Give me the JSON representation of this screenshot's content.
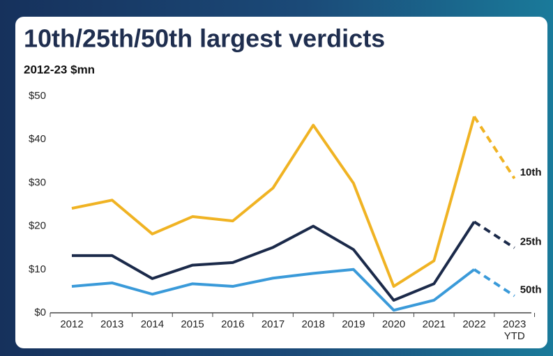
{
  "chart_data": {
    "type": "line",
    "title": "10th/25th/50th largest verdicts",
    "subtitle": "2012-23 $mn",
    "categories": [
      "2012",
      "2013",
      "2014",
      "2015",
      "2016",
      "2017",
      "2018",
      "2019",
      "2020",
      "2021",
      "2022",
      "2023\nYTD"
    ],
    "series": [
      {
        "name": "10th",
        "color": "#f0b323",
        "values": [
          24.1,
          26,
          18.2,
          22.2,
          21.2,
          28.8,
          43.3,
          29.9,
          6.1,
          12,
          45.3,
          31
        ]
      },
      {
        "name": "25th",
        "color": "#1b2a4a",
        "values": [
          13.2,
          13.2,
          7.9,
          11,
          11.6,
          15.1,
          20,
          14.6,
          2.9,
          6.7,
          21,
          15
        ]
      },
      {
        "name": "50th",
        "color": "#3a9ad9",
        "values": [
          6.1,
          6.9,
          4.3,
          6.7,
          6.1,
          8,
          9.1,
          10,
          0.6,
          2.9,
          10,
          3.9
        ]
      }
    ],
    "ylim": [
      0,
      50
    ],
    "yticks": [
      {
        "value": 0,
        "label": "$0"
      },
      {
        "value": 10,
        "label": "$10"
      },
      {
        "value": 20,
        "label": "$20"
      },
      {
        "value": 30,
        "label": "$30"
      },
      {
        "value": 40,
        "label": "$40"
      },
      {
        "value": 50,
        "label": "$50"
      }
    ],
    "grid": false
  }
}
